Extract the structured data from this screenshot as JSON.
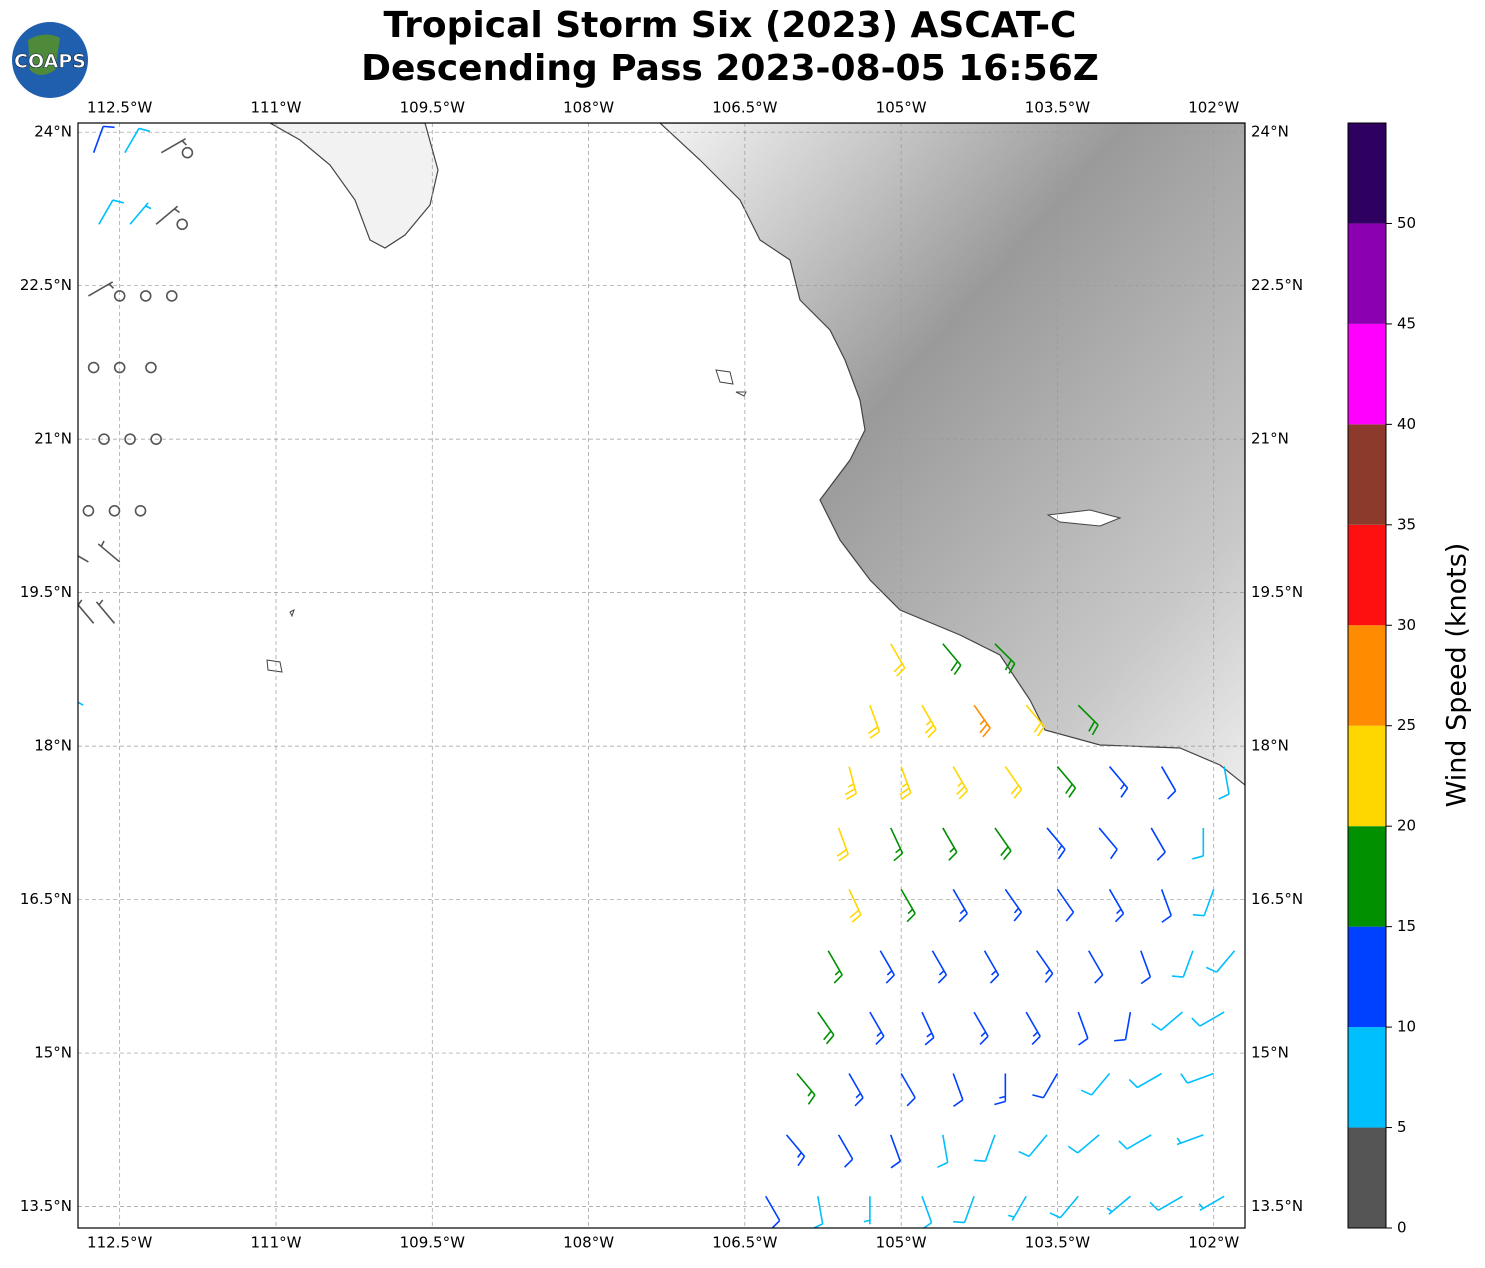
{
  "chart_data": {
    "type": "barbs",
    "title": "Tropical Storm Six (2023) ASCAT-C",
    "subtitle": "Descending Pass 2023-08-05 16:56Z",
    "logo_text": "COAPS",
    "xlim": [
      -112.9,
      -101.7
    ],
    "ylim": [
      13.29,
      24.09
    ],
    "xticks": [
      {
        "value": -112.5,
        "label": "112.5°W"
      },
      {
        "value": -111,
        "label": "111°W"
      },
      {
        "value": -109.5,
        "label": "109.5°W"
      },
      {
        "value": -108,
        "label": "108°W"
      },
      {
        "value": -106.5,
        "label": "106.5°W"
      },
      {
        "value": -105,
        "label": "105°W"
      },
      {
        "value": -103.5,
        "label": "103.5°W"
      },
      {
        "value": -102,
        "label": "102°W"
      }
    ],
    "yticks": [
      {
        "value": 13.5,
        "label": "13.5°N"
      },
      {
        "value": 15,
        "label": "15°N"
      },
      {
        "value": 16.5,
        "label": "16.5°N"
      },
      {
        "value": 18,
        "label": "18°N"
      },
      {
        "value": 19.5,
        "label": "19.5°N"
      },
      {
        "value": 21,
        "label": "21°N"
      },
      {
        "value": 22.5,
        "label": "22.5°N"
      },
      {
        "value": 24,
        "label": "24°N"
      }
    ],
    "grid": true,
    "barbs": {
      "lon": [
        -106.3,
        -105.8,
        -105.3,
        -104.8,
        -104.3,
        -103.8,
        -103.3,
        -102.8,
        -102.3,
        -101.9,
        -106.1,
        -105.6,
        -105.1,
        -104.6,
        -104.1,
        -103.6,
        -103.1,
        -102.6,
        -102.1,
        -106.0,
        -105.5,
        -105.0,
        -104.5,
        -104.0,
        -103.5,
        -103.0,
        -102.5,
        -102.0,
        -105.8,
        -105.3,
        -104.8,
        -104.3,
        -103.8,
        -103.3,
        -102.8,
        -102.3,
        -101.9,
        -105.7,
        -105.2,
        -104.7,
        -104.2,
        -103.7,
        -103.2,
        -102.7,
        -102.2,
        -101.8,
        -105.5,
        -105.0,
        -104.5,
        -104.0,
        -103.5,
        -103.0,
        -102.5,
        -102.0,
        -105.6,
        -105.1,
        -104.6,
        -104.1,
        -103.6,
        -103.1,
        -102.6,
        -102.1,
        -105.5,
        -105.0,
        -104.5,
        -104.0,
        -103.5,
        -103.0,
        -102.5,
        -101.9,
        -105.3,
        -104.8,
        -104.3,
        -103.8,
        -103.3,
        -105.1,
        -104.6,
        -104.1,
        -112.75,
        -112.45,
        -112.1,
        -111.85,
        -112.7,
        -112.4,
        -112.15,
        -111.9,
        -112.8,
        -112.5,
        -112.25,
        -112.0,
        -112.75,
        -112.5,
        -112.2,
        -112.65,
        -112.4,
        -112.15,
        -112.8,
        -112.55,
        -112.3,
        -112.8,
        -112.5,
        -112.75,
        -112.55,
        -112.85
      ],
      "lat": [
        13.6,
        13.6,
        13.6,
        13.6,
        13.6,
        13.6,
        13.6,
        13.6,
        13.6,
        13.6,
        14.2,
        14.2,
        14.2,
        14.2,
        14.2,
        14.2,
        14.2,
        14.2,
        14.2,
        14.8,
        14.8,
        14.8,
        14.8,
        14.8,
        14.8,
        14.8,
        14.8,
        14.8,
        15.4,
        15.4,
        15.4,
        15.4,
        15.4,
        15.4,
        15.4,
        15.4,
        15.4,
        16.0,
        16.0,
        16.0,
        16.0,
        16.0,
        16.0,
        16.0,
        16.0,
        16.0,
        16.6,
        16.6,
        16.6,
        16.6,
        16.6,
        16.6,
        16.6,
        16.6,
        17.2,
        17.2,
        17.2,
        17.2,
        17.2,
        17.2,
        17.2,
        17.2,
        17.8,
        17.8,
        17.8,
        17.8,
        17.8,
        17.8,
        17.8,
        17.8,
        18.4,
        18.4,
        18.4,
        18.4,
        18.4,
        19.0,
        19.0,
        19.0,
        23.8,
        23.8,
        23.8,
        23.8,
        23.1,
        23.1,
        23.1,
        23.1,
        22.4,
        22.4,
        22.4,
        22.4,
        21.7,
        21.7,
        21.7,
        21.0,
        21.0,
        21.0,
        20.3,
        20.3,
        20.3,
        19.8,
        19.8,
        19.2,
        19.2,
        18.4
      ],
      "speed": [
        12,
        8,
        7,
        9,
        8,
        7,
        8,
        7,
        8,
        7,
        13,
        11,
        12,
        9,
        8,
        8,
        9,
        8,
        7,
        17,
        13,
        12,
        11,
        13,
        12,
        9,
        8,
        8,
        18,
        14,
        13,
        14,
        13,
        12,
        11,
        8,
        8,
        17,
        14,
        13,
        14,
        13,
        12,
        11,
        9,
        8,
        22,
        16,
        14,
        13,
        12,
        13,
        10,
        8,
        22,
        17,
        16,
        18,
        14,
        12,
        11,
        8,
        23,
        24,
        23,
        22,
        19,
        13,
        12,
        9,
        22,
        23,
        27,
        22,
        18,
        21,
        19,
        18,
        12,
        8,
        4,
        1,
        8,
        7,
        3,
        1,
        4,
        1,
        1,
        1,
        1,
        1,
        1,
        1,
        1,
        1,
        1,
        1,
        1,
        4,
        3,
        4,
        3,
        7
      ],
      "direction": [
        150,
        170,
        180,
        160,
        200,
        210,
        220,
        230,
        240,
        240,
        140,
        150,
        160,
        170,
        200,
        220,
        230,
        240,
        250,
        140,
        150,
        150,
        160,
        180,
        210,
        220,
        240,
        250,
        145,
        150,
        155,
        150,
        150,
        160,
        190,
        230,
        240,
        150,
        150,
        150,
        150,
        145,
        150,
        160,
        200,
        220,
        155,
        150,
        150,
        145,
        145,
        150,
        160,
        200,
        160,
        155,
        150,
        145,
        140,
        140,
        150,
        180,
        165,
        160,
        150,
        145,
        140,
        140,
        150,
        170,
        160,
        150,
        145,
        140,
        135,
        150,
        140,
        135,
        20,
        30,
        60,
        0,
        30,
        40,
        50,
        0,
        60,
        0,
        0,
        0,
        0,
        0,
        0,
        0,
        0,
        0,
        0,
        0,
        0,
        300,
        310,
        320,
        320,
        300
      ]
    },
    "colorbar": {
      "label": "Wind Speed (knots)",
      "bounds": [
        0,
        5,
        10,
        15,
        20,
        25,
        30,
        35,
        40,
        45,
        50,
        55
      ],
      "colors": [
        "#555555",
        "#00bfff",
        "#0040ff",
        "#009000",
        "#ffd700",
        "#ff8c00",
        "#ff1010",
        "#8b3a2b",
        "#ff00ff",
        "#8b00b0",
        "#2e0060"
      ],
      "ticks": [
        0,
        5,
        10,
        15,
        20,
        25,
        30,
        35,
        40,
        45,
        50
      ]
    }
  }
}
